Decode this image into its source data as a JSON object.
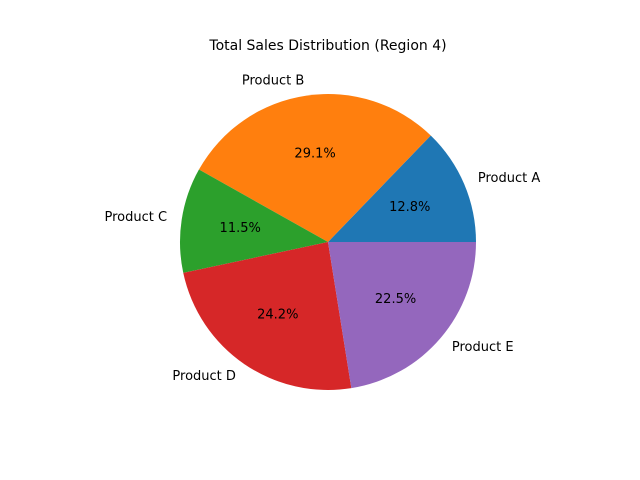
{
  "chart_data": {
    "type": "pie",
    "title": "Total Sales Distribution (Region 4)",
    "start_angle": 0,
    "direction": "counterclockwise",
    "slices": [
      {
        "label": "Product A",
        "percent": 12.8,
        "percent_label": "12.8%",
        "color": "#1f77b4"
      },
      {
        "label": "Product B",
        "percent": 29.1,
        "percent_label": "29.1%",
        "color": "#ff7f0e"
      },
      {
        "label": "Product C",
        "percent": 11.5,
        "percent_label": "11.5%",
        "color": "#2ca02c"
      },
      {
        "label": "Product D",
        "percent": 24.2,
        "percent_label": "24.2%",
        "color": "#d62728"
      },
      {
        "label": "Product E",
        "percent": 22.5,
        "percent_label": "22.5%",
        "color": "#9467bd"
      }
    ]
  }
}
